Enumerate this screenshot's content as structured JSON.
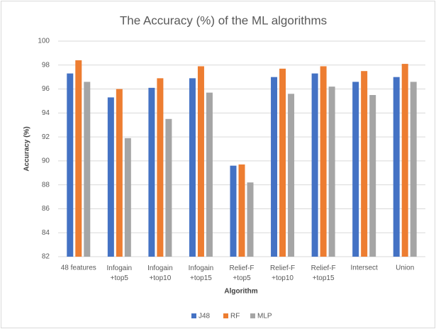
{
  "chart_data": {
    "type": "bar",
    "title": "The Accuracy  (%) of the ML algorithms",
    "x_label": "Algorithm",
    "y_label": "Accuracy (%)",
    "categories": [
      "48 features",
      "Infogain\n+top5",
      "Infogain\n+top10",
      "Infogain\n+top15",
      "Relief-F\n+top5",
      "Relief-F\n+top10",
      "Relief-F\n+top15",
      "Intersect",
      "Union"
    ],
    "series": [
      {
        "name": "J48",
        "color": "#4472c4",
        "values": [
          97.3,
          95.3,
          96.1,
          96.9,
          89.6,
          97.0,
          97.3,
          96.6,
          97.0
        ]
      },
      {
        "name": "RF",
        "color": "#ed7d31",
        "values": [
          98.4,
          96.0,
          96.9,
          97.9,
          89.7,
          97.7,
          97.9,
          97.5,
          98.1
        ]
      },
      {
        "name": "MLP",
        "color": "#a5a5a5",
        "values": [
          96.6,
          91.9,
          93.5,
          95.7,
          88.2,
          95.6,
          96.2,
          95.5,
          96.6
        ]
      }
    ],
    "ylim": [
      82,
      100
    ],
    "yticks": [
      82,
      84,
      86,
      88,
      90,
      92,
      94,
      96,
      98,
      100
    ],
    "grid": true,
    "legend": "bottom"
  }
}
